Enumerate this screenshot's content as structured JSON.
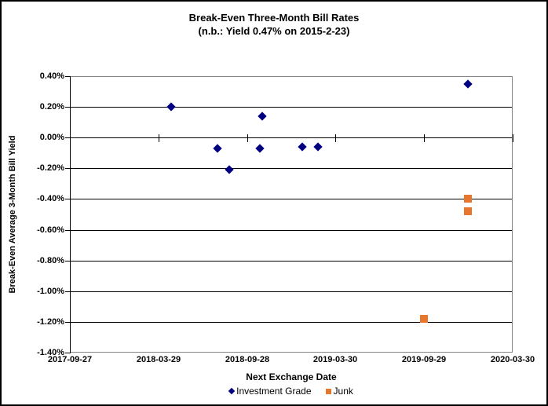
{
  "chart_data": {
    "type": "scatter",
    "title": "Break-Even Three-Month Bill Rates",
    "subtitle": "(n.b.: Yield 0.47% on 2015-2-23)",
    "xlabel": "Next Exchange Date",
    "ylabel": "Break-Even Average 3-Month Bill Yield",
    "x_type": "date",
    "xlim": [
      "2017-09-27",
      "2020-03-30"
    ],
    "ylim_pct": [
      -1.4,
      0.4
    ],
    "y_tick_step_pct": 0.2,
    "x_tick_labels": [
      "2017-09-27",
      "2018-03-29",
      "2018-09-28",
      "2019-03-30",
      "2019-09-29",
      "2020-03-30"
    ],
    "y_tick_labels": [
      "0.40%",
      "0.20%",
      "0.00%",
      "-0.20%",
      "-0.40%",
      "-0.60%",
      "-0.80%",
      "-1.00%",
      "-1.20%",
      "-1.40%"
    ],
    "grid": "horizontal",
    "gridline_color": "#000000",
    "plot_border_color": "#848484",
    "legend_position": "bottom-center",
    "series": [
      {
        "name": "Investment Grade",
        "marker": "diamond",
        "color": "#000080",
        "points": [
          {
            "x": "2018-04-24",
            "y_pct": 0.2
          },
          {
            "x": "2018-07-29",
            "y_pct": -0.07
          },
          {
            "x": "2018-08-23",
            "y_pct": -0.21
          },
          {
            "x": "2018-10-25",
            "y_pct": -0.07
          },
          {
            "x": "2018-10-30",
            "y_pct": 0.14
          },
          {
            "x": "2019-01-21",
            "y_pct": -0.06
          },
          {
            "x": "2019-02-22",
            "y_pct": -0.06
          },
          {
            "x": "2019-12-29",
            "y_pct": 0.35
          }
        ]
      },
      {
        "name": "Junk",
        "marker": "square",
        "color": "#E8772E",
        "points": [
          {
            "x": "2019-09-29",
            "y_pct": -1.18
          },
          {
            "x": "2019-12-29",
            "y_pct": -0.4
          },
          {
            "x": "2019-12-29",
            "y_pct": -0.48
          }
        ]
      }
    ]
  }
}
